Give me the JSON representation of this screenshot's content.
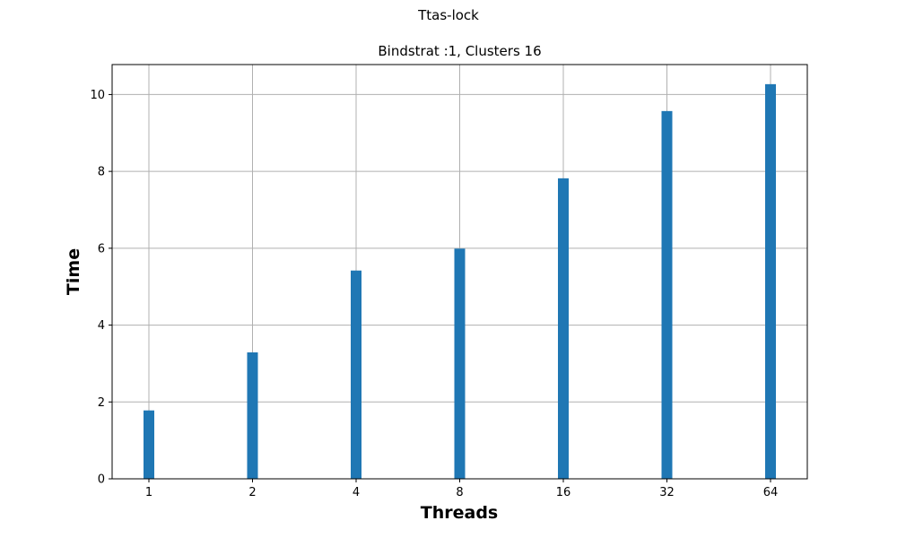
{
  "chart_data": {
    "type": "bar",
    "suptitle": "Ttas-lock",
    "title": "Bindstrat :1, Clusters 16",
    "xlabel": "Threads",
    "ylabel": "Time",
    "categories": [
      "1",
      "2",
      "4",
      "8",
      "16",
      "32",
      "64"
    ],
    "values": [
      1.78,
      3.29,
      5.42,
      5.99,
      7.82,
      9.57,
      10.27
    ],
    "ylim": [
      0,
      10.78
    ],
    "yticks": [
      0,
      2,
      4,
      6,
      8,
      10
    ],
    "grid": true,
    "bar_color": "#1f77b4",
    "grid_color": "#b0b0b0"
  }
}
